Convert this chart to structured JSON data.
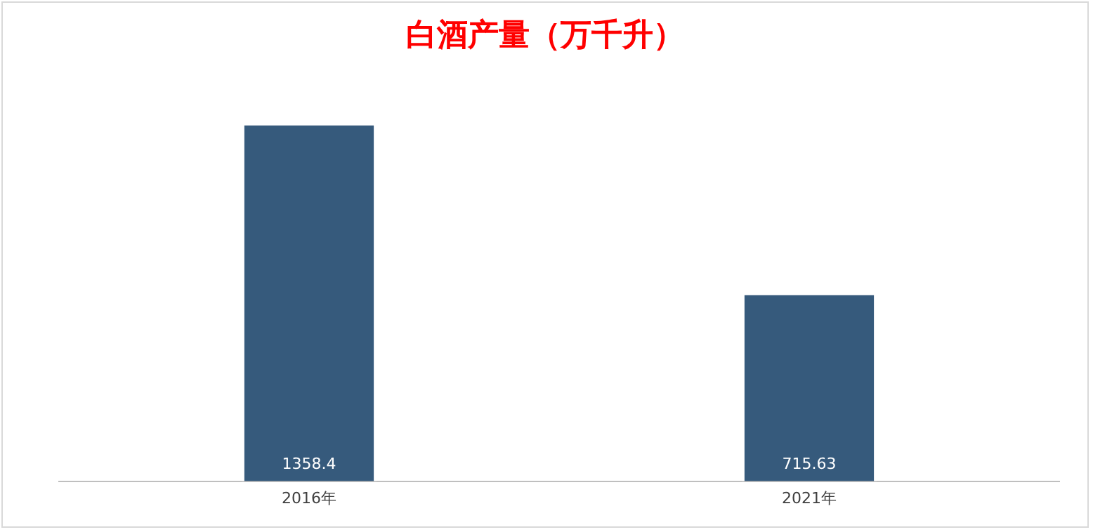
{
  "chart_data": {
    "type": "bar",
    "title": "白酒产量（万千升）",
    "categories": [
      "2016年",
      "2021年"
    ],
    "values": [
      1358.4,
      715.63
    ],
    "color": "#365a7c",
    "data_labels": true,
    "grid": false,
    "legend": false
  }
}
